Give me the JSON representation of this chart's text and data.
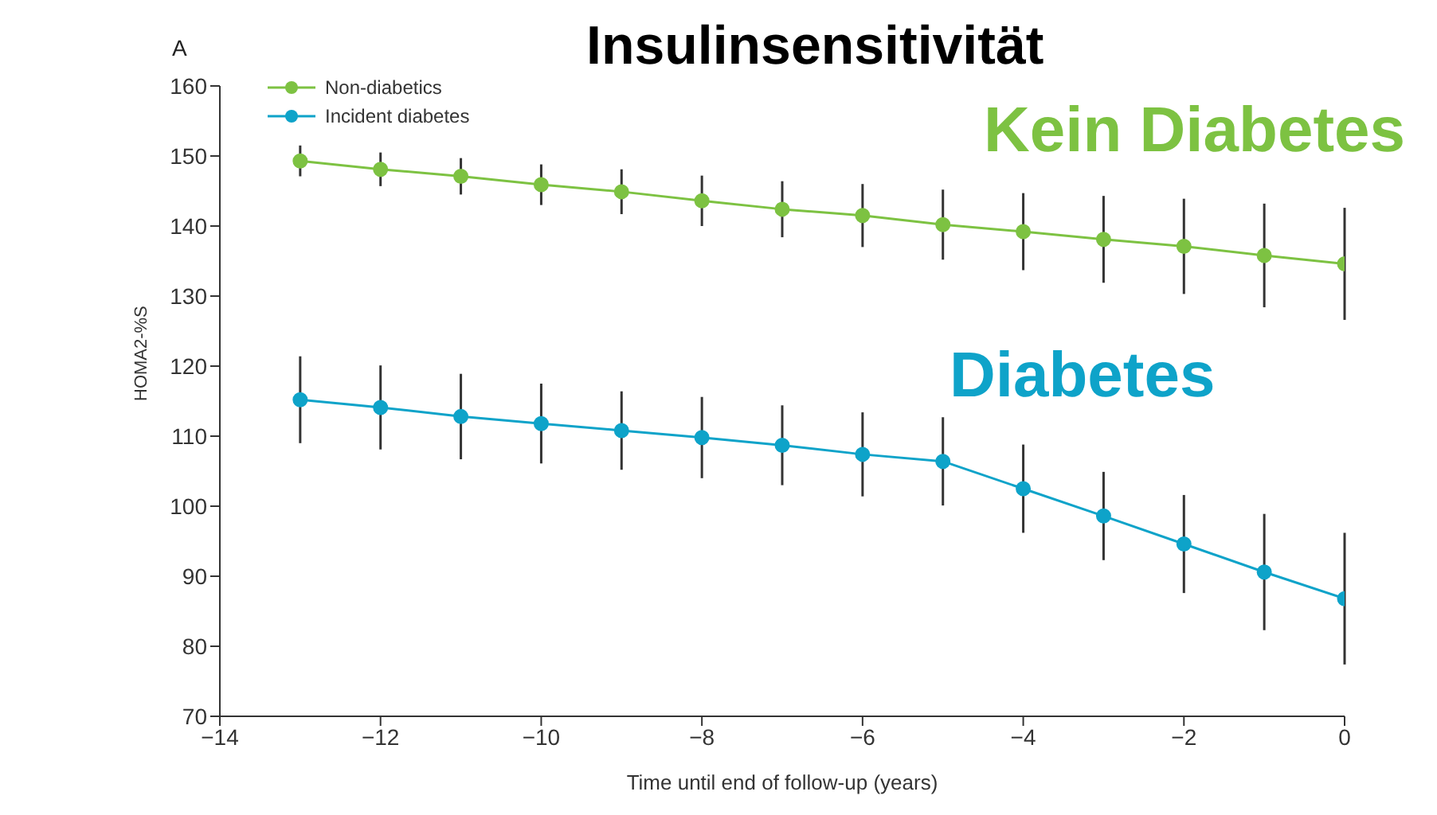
{
  "chart_data": {
    "type": "line",
    "title": "Insulinsensitivität",
    "xlabel": "Time until end of follow-up (years)",
    "ylabel": "HOMA2-%S",
    "annotations": [
      "A",
      "Kein Diabetes",
      "Diabetes"
    ],
    "x": [
      -13,
      -12,
      -11,
      -10,
      -9,
      -8,
      -7,
      -6,
      -5,
      -4,
      -3,
      -2,
      -1,
      0
    ],
    "series": [
      {
        "name": "Non-diabetics",
        "color": "#7dc242",
        "values": [
          149.3,
          148.1,
          147.1,
          145.9,
          144.9,
          143.6,
          142.4,
          141.5,
          140.2,
          139.2,
          138.1,
          137.1,
          135.8,
          134.6
        ],
        "errors": [
          2.2,
          2.4,
          2.6,
          2.9,
          3.2,
          3.6,
          4,
          4.5,
          5,
          5.5,
          6.2,
          6.8,
          7.4,
          8
        ]
      },
      {
        "name": "Incident diabetes",
        "color": "#0ea3c9",
        "values": [
          115.2,
          114.1,
          112.8,
          111.8,
          110.8,
          109.8,
          108.7,
          107.4,
          106.4,
          102.5,
          98.6,
          94.6,
          90.6,
          86.8
        ],
        "errors": [
          6.2,
          6,
          6.1,
          5.7,
          5.6,
          5.8,
          5.7,
          6,
          6.3,
          6.3,
          6.3,
          7,
          8.3,
          9.4
        ]
      }
    ],
    "xlim": [
      -14,
      0
    ],
    "xticks": [
      -14,
      -12,
      -10,
      -8,
      -6,
      -4,
      -2,
      0
    ],
    "ylim": [
      70,
      160
    ],
    "yticks": [
      70,
      80,
      90,
      100,
      110,
      120,
      130,
      140,
      150,
      160
    ],
    "grid": false,
    "legend": "top left",
    "marker": "circle",
    "line_style": "solid"
  }
}
